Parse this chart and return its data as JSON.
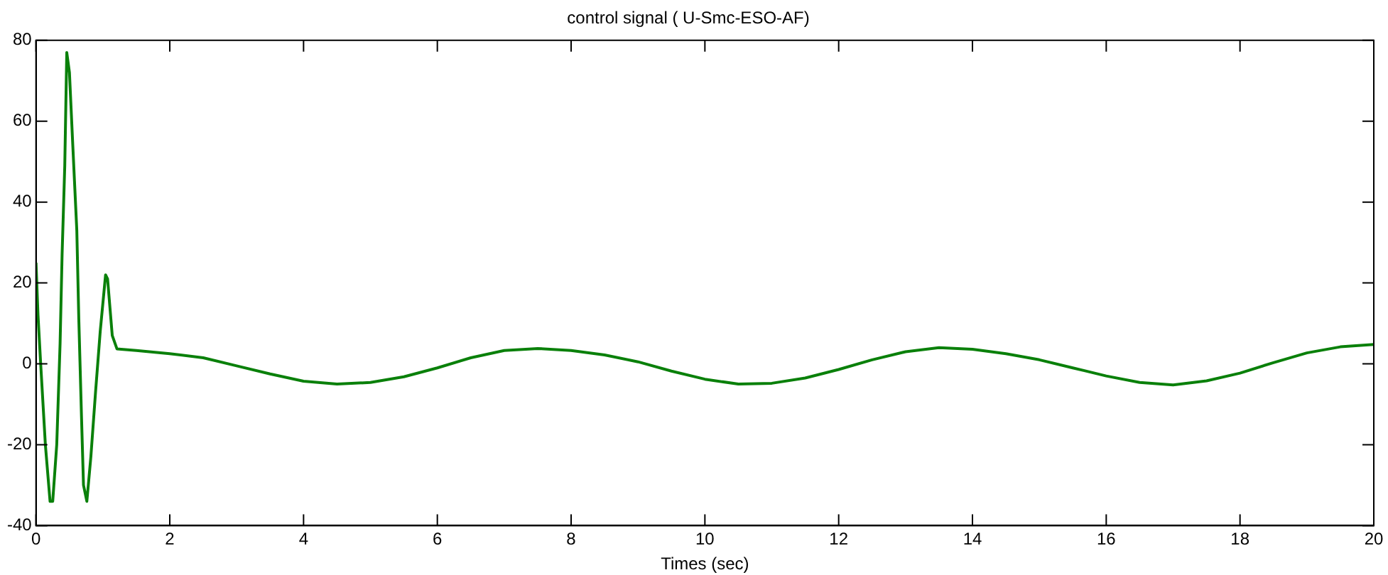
{
  "chart_data": {
    "type": "line",
    "title": "control signal ( U-Smc-ESO-AF)",
    "xlabel": "Times (sec)",
    "x": [
      0,
      0.03,
      0.07,
      0.14,
      0.21,
      0.25,
      0.31,
      0.36,
      0.39,
      0.43,
      0.46,
      0.5,
      0.55,
      0.61,
      0.64,
      0.68,
      0.71,
      0.76,
      0.82,
      0.89,
      0.96,
      1.04,
      1.07,
      1.14,
      1.21,
      1.5,
      2,
      2.5,
      3,
      3.5,
      4,
      4.5,
      5,
      5.5,
      6,
      6.5,
      7,
      7.5,
      8,
      8.5,
      9,
      9.5,
      10,
      10.5,
      11,
      11.5,
      12,
      12.5,
      13,
      13.5,
      14,
      14.5,
      15,
      15.5,
      16,
      16.5,
      17,
      17.5,
      18,
      18.5,
      19,
      19.5,
      20
    ],
    "series": [
      {
        "color": "#0a800a",
        "values": [
          25,
          12,
          0,
          -20,
          -34,
          -34,
          -20,
          5,
          27,
          49,
          77,
          72,
          54,
          33,
          11,
          -13,
          -30,
          -34,
          -23,
          -7,
          8,
          22,
          21,
          7,
          3.7,
          3.3,
          2.5,
          1.5,
          -0.5,
          -2.5,
          -4.3,
          -5,
          -4.6,
          -3.2,
          -1,
          1.5,
          3.3,
          3.8,
          3.3,
          2.2,
          0.5,
          -1.8,
          -3.8,
          -5,
          -4.8,
          -3.5,
          -1.4,
          1,
          3,
          4,
          3.6,
          2.5,
          1,
          -1,
          -3,
          -4.6,
          -5.2,
          -4.2,
          -2.3,
          0.3,
          2.7,
          4.2,
          4.8
        ]
      }
    ],
    "xlim": [
      0,
      20
    ],
    "xticks": [
      0,
      2,
      4,
      6,
      8,
      10,
      12,
      14,
      16,
      18,
      20
    ],
    "ylim": [
      -40,
      80
    ],
    "yticks": [
      -40,
      -20,
      0,
      20,
      40,
      60,
      80
    ],
    "grid": false,
    "legend": false,
    "marker": "none",
    "line_style": "solid"
  }
}
